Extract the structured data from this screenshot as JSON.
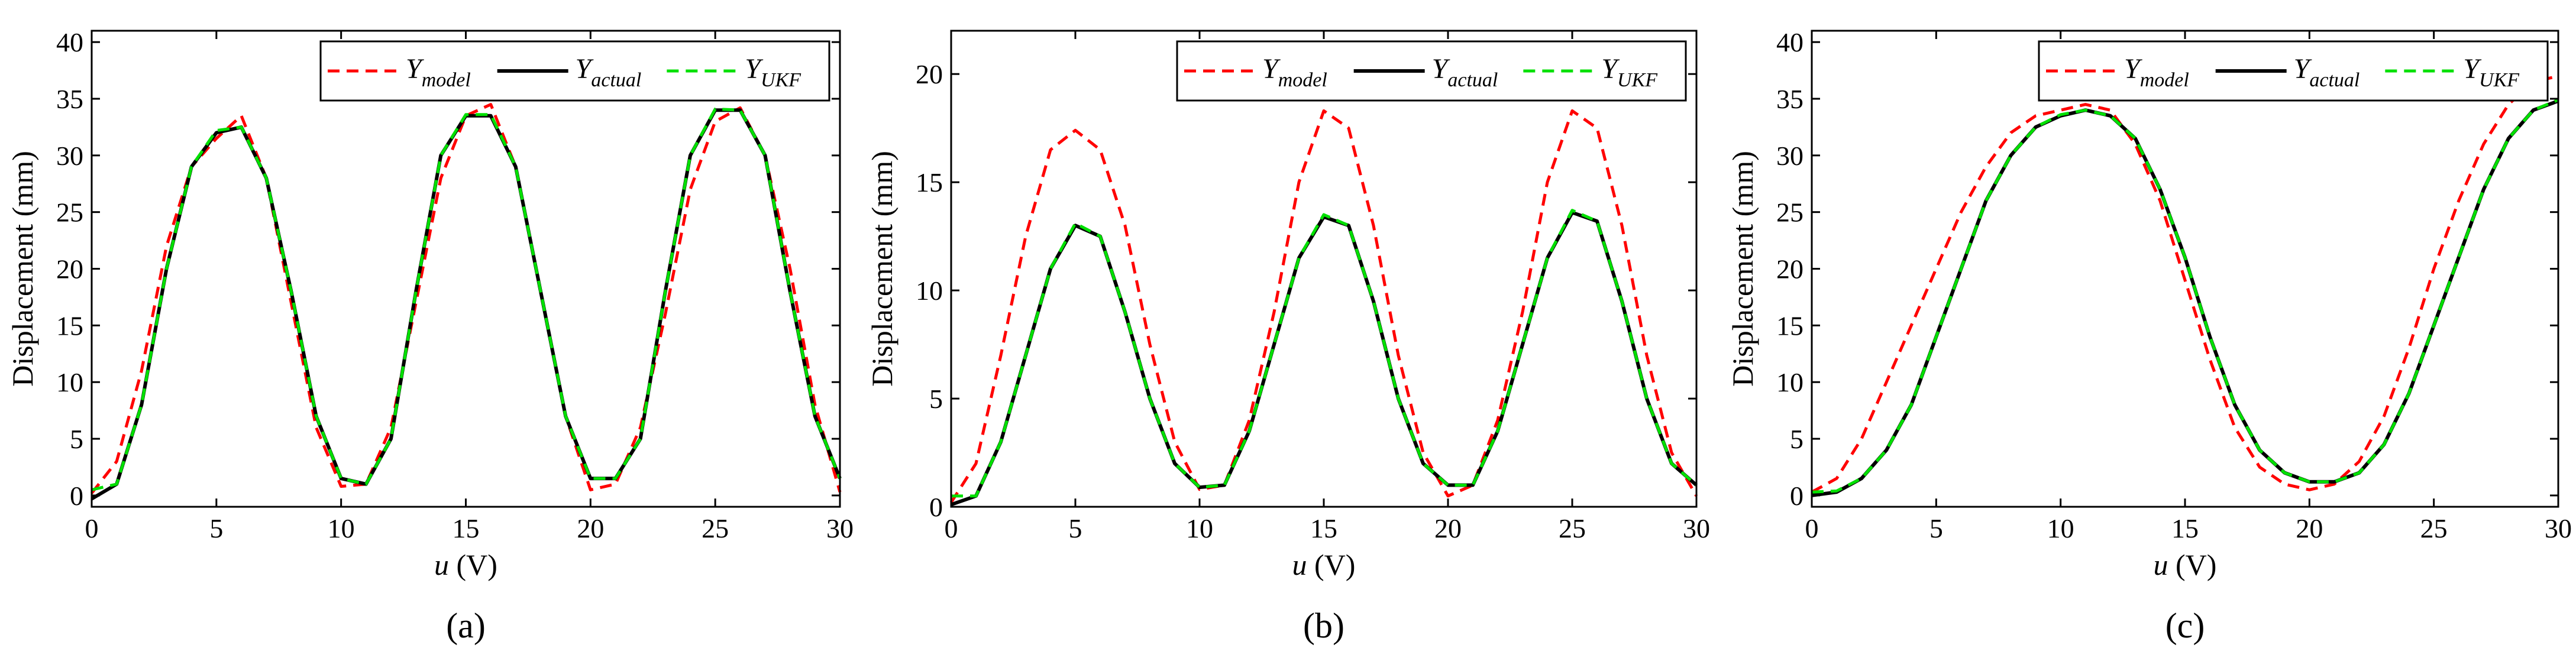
{
  "figure": {
    "colors": {
      "model": "#ff0000",
      "actual": "#000000",
      "ukf": "#00e000",
      "axes": "#000000",
      "background": "#ffffff"
    }
  },
  "chart_data": [
    {
      "type": "line",
      "caption": "(a)",
      "xlabel_var": "u",
      "xlabel_unit": " (V)",
      "ylabel": "Displacement (mm)",
      "xlim": [
        0,
        30
      ],
      "ylim": [
        -1,
        41
      ],
      "xticks": [
        0,
        5,
        10,
        15,
        20,
        25,
        30
      ],
      "yticks": [
        0,
        5,
        10,
        15,
        20,
        25,
        30,
        35,
        40
      ],
      "legend_position": "top-right",
      "legend": [
        {
          "base": "Y",
          "sub": "model",
          "style": "dashed",
          "color": "#ff0000"
        },
        {
          "base": "Y",
          "sub": "actual",
          "style": "solid",
          "color": "#000000"
        },
        {
          "base": "Y",
          "sub": "UKF",
          "style": "dashed",
          "color": "#00e000"
        }
      ],
      "series": [
        {
          "name": "Y_model",
          "style": "dashed",
          "color": "#ff0000",
          "x": [
            0,
            1,
            2,
            3,
            4,
            5,
            6,
            7,
            8,
            9,
            10,
            11,
            12,
            13,
            14,
            15,
            16,
            17,
            18,
            19,
            20,
            21,
            22,
            23,
            24,
            25,
            26,
            27,
            28,
            29,
            30
          ],
          "y": [
            0.2,
            3,
            11,
            22,
            29,
            31.5,
            33.5,
            28,
            17,
            6,
            0.8,
            1,
            6,
            17,
            28,
            33.5,
            34.5,
            29,
            18,
            7,
            0.5,
            1,
            6,
            16,
            27,
            33,
            34.2,
            30,
            20,
            8,
            0.3
          ]
        },
        {
          "name": "Y_actual",
          "style": "solid",
          "color": "#000000",
          "x": [
            0,
            1,
            2,
            3,
            4,
            5,
            6,
            7,
            8,
            9,
            10,
            11,
            12,
            13,
            14,
            15,
            16,
            17,
            18,
            19,
            20,
            21,
            22,
            23,
            24,
            25,
            26,
            27,
            28,
            29,
            30
          ],
          "y": [
            -0.3,
            1,
            8,
            20,
            29,
            32,
            32.5,
            28,
            18,
            7,
            1.5,
            1,
            5,
            18,
            30,
            33.5,
            33.5,
            29,
            18,
            7,
            1.5,
            1.5,
            5,
            18,
            30,
            34,
            34,
            30,
            18,
            7,
            1.5
          ]
        },
        {
          "name": "Y_UKF",
          "style": "dashed",
          "color": "#00e000",
          "x": [
            0,
            1,
            2,
            3,
            4,
            5,
            6,
            7,
            8,
            9,
            10,
            11,
            12,
            13,
            14,
            15,
            16,
            17,
            18,
            19,
            20,
            21,
            22,
            23,
            24,
            25,
            26,
            27,
            28,
            29,
            30
          ],
          "y": [
            0.5,
            1,
            8,
            20,
            29,
            32.2,
            32.5,
            28,
            18,
            7,
            1.5,
            1,
            5,
            18,
            30,
            33.6,
            33.6,
            29,
            18,
            7,
            1.5,
            1.5,
            5,
            18,
            30,
            34.1,
            34,
            30,
            18,
            7,
            1.5
          ]
        }
      ]
    },
    {
      "type": "line",
      "caption": "(b)",
      "xlabel_var": "u",
      "xlabel_unit": " (V)",
      "ylabel": "Displacement (mm)",
      "xlim": [
        0,
        30
      ],
      "ylim": [
        0,
        22
      ],
      "xticks": [
        0,
        5,
        10,
        15,
        20,
        25,
        30
      ],
      "yticks": [
        0,
        5,
        10,
        15,
        20
      ],
      "legend_position": "top-right",
      "legend": [
        {
          "base": "Y",
          "sub": "model",
          "style": "dashed",
          "color": "#ff0000"
        },
        {
          "base": "Y",
          "sub": "actual",
          "style": "solid",
          "color": "#000000"
        },
        {
          "base": "Y",
          "sub": "UKF",
          "style": "dashed",
          "color": "#00e000"
        }
      ],
      "series": [
        {
          "name": "Y_model",
          "style": "dashed",
          "color": "#ff0000",
          "x": [
            0,
            1,
            2,
            3,
            4,
            5,
            6,
            7,
            8,
            9,
            10,
            11,
            12,
            13,
            14,
            15,
            16,
            17,
            18,
            19,
            20,
            21,
            22,
            23,
            24,
            25,
            26,
            27,
            28,
            29,
            30
          ],
          "y": [
            0.2,
            2,
            7,
            12.5,
            16.5,
            17.4,
            16.5,
            13,
            7.5,
            3,
            0.8,
            1,
            4,
            9,
            15,
            18.3,
            17.5,
            13,
            7,
            2.5,
            0.5,
            1,
            4,
            9,
            15,
            18.3,
            17.5,
            13,
            7,
            2.5,
            0.5
          ]
        },
        {
          "name": "Y_actual",
          "style": "solid",
          "color": "#000000",
          "x": [
            0,
            1,
            2,
            3,
            4,
            5,
            6,
            7,
            8,
            9,
            10,
            11,
            12,
            13,
            14,
            15,
            16,
            17,
            18,
            19,
            20,
            21,
            22,
            23,
            24,
            25,
            26,
            27,
            28,
            29,
            30
          ],
          "y": [
            0.1,
            0.5,
            3,
            7,
            11,
            13,
            12.5,
            9,
            5,
            2,
            0.9,
            1,
            3.5,
            7.5,
            11.5,
            13.4,
            13,
            9.5,
            5,
            2,
            1,
            1,
            3.5,
            7.5,
            11.5,
            13.6,
            13.2,
            9.5,
            5,
            2,
            1
          ]
        },
        {
          "name": "Y_UKF",
          "style": "dashed",
          "color": "#00e000",
          "x": [
            0,
            1,
            2,
            3,
            4,
            5,
            6,
            7,
            8,
            9,
            10,
            11,
            12,
            13,
            14,
            15,
            16,
            17,
            18,
            19,
            20,
            21,
            22,
            23,
            24,
            25,
            26,
            27,
            28,
            29,
            30
          ],
          "y": [
            0.5,
            0.5,
            3,
            7,
            11,
            13.1,
            12.5,
            9,
            5,
            2,
            0.9,
            1,
            3.5,
            7.5,
            11.5,
            13.5,
            13,
            9.5,
            5,
            2,
            1,
            1,
            3.5,
            7.5,
            11.5,
            13.7,
            13.2,
            9.5,
            5,
            2,
            1
          ]
        }
      ]
    },
    {
      "type": "line",
      "caption": "(c)",
      "xlabel_var": "u",
      "xlabel_unit": " (V)",
      "ylabel": "Displacement (mm)",
      "xlim": [
        0,
        30
      ],
      "ylim": [
        -1,
        41
      ],
      "xticks": [
        0,
        5,
        10,
        15,
        20,
        25,
        30
      ],
      "yticks": [
        0,
        5,
        10,
        15,
        20,
        25,
        30,
        35,
        40
      ],
      "legend_position": "top-right",
      "legend": [
        {
          "base": "Y",
          "sub": "model",
          "style": "dashed",
          "color": "#ff0000"
        },
        {
          "base": "Y",
          "sub": "actual",
          "style": "solid",
          "color": "#000000"
        },
        {
          "base": "Y",
          "sub": "UKF",
          "style": "dashed",
          "color": "#00e000"
        }
      ],
      "series": [
        {
          "name": "Y_model",
          "style": "dashed",
          "color": "#ff0000",
          "x": [
            0,
            1,
            2,
            3,
            4,
            5,
            6,
            7,
            8,
            9,
            10,
            11,
            12,
            13,
            14,
            15,
            16,
            17,
            18,
            19,
            20,
            21,
            22,
            23,
            24,
            25,
            26,
            27,
            28,
            29,
            30
          ],
          "y": [
            0.3,
            1.5,
            5,
            10,
            15,
            20,
            25,
            29,
            32,
            33.5,
            34,
            34.5,
            34,
            31,
            26,
            19,
            12,
            6,
            2.5,
            1,
            0.5,
            1,
            3,
            7,
            13,
            20,
            26,
            31,
            34.5,
            36.5,
            37
          ]
        },
        {
          "name": "Y_actual",
          "style": "solid",
          "color": "#000000",
          "x": [
            0,
            1,
            2,
            3,
            4,
            5,
            6,
            7,
            8,
            9,
            10,
            11,
            12,
            13,
            14,
            15,
            16,
            17,
            18,
            19,
            20,
            21,
            22,
            23,
            24,
            25,
            26,
            27,
            28,
            29,
            30
          ],
          "y": [
            0,
            0.3,
            1.5,
            4,
            8,
            14,
            20,
            26,
            30,
            32.5,
            33.5,
            34,
            33.5,
            31.5,
            27,
            21,
            14,
            8,
            4,
            2,
            1.2,
            1.2,
            2,
            4.5,
            9,
            15,
            21,
            27,
            31.5,
            34,
            34.8
          ]
        },
        {
          "name": "Y_UKF",
          "style": "dashed",
          "color": "#00e000",
          "x": [
            0,
            1,
            2,
            3,
            4,
            5,
            6,
            7,
            8,
            9,
            10,
            11,
            12,
            13,
            14,
            15,
            16,
            17,
            18,
            19,
            20,
            21,
            22,
            23,
            24,
            25,
            26,
            27,
            28,
            29,
            30
          ],
          "y": [
            0.3,
            0.4,
            1.5,
            4,
            8,
            14,
            20,
            26,
            30,
            32.5,
            33.6,
            34,
            33.5,
            31.5,
            27,
            21,
            14,
            8,
            4,
            2,
            1.2,
            1.2,
            2,
            4.5,
            9,
            15,
            21,
            27,
            31.5,
            34,
            34.9
          ]
        }
      ]
    }
  ]
}
